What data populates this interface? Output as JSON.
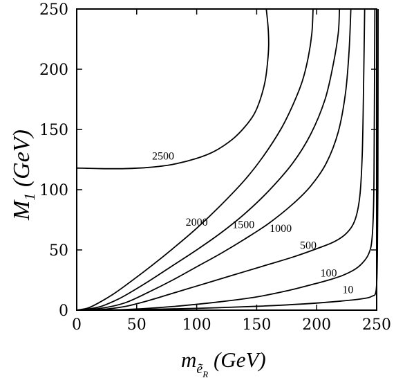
{
  "chart_data": {
    "type": "line",
    "title": "",
    "xlabel": {
      "main": "m",
      "sub": "ẽ",
      "subsub": "R",
      "units": " (GeV)"
    },
    "ylabel": {
      "main": "M",
      "sub": "1",
      "units": "  (GeV)"
    },
    "xlim": [
      0,
      250
    ],
    "ylim": [
      0,
      250
    ],
    "xticks": [
      0,
      50,
      100,
      150,
      200,
      250
    ],
    "yticks": [
      0,
      50,
      100,
      150,
      200,
      250
    ],
    "grid": false,
    "legend": "none",
    "series": [
      {
        "label": "2500",
        "label_at": [
          72,
          125
        ],
        "points": [
          [
            0,
            118
          ],
          [
            20,
            117.5
          ],
          [
            40,
            117.5
          ],
          [
            60,
            118.5
          ],
          [
            80,
            121
          ],
          [
            100,
            126
          ],
          [
            115,
            132
          ],
          [
            130,
            142
          ],
          [
            140,
            152
          ],
          [
            148,
            163
          ],
          [
            153,
            175
          ],
          [
            157,
            190
          ],
          [
            159,
            205
          ],
          [
            160,
            220
          ],
          [
            159.5,
            235
          ],
          [
            158,
            250
          ]
        ]
      },
      {
        "label": "2000",
        "label_at": [
          100,
          70
        ],
        "points": [
          [
            0,
            0
          ],
          [
            10,
            2
          ],
          [
            20,
            7
          ],
          [
            30,
            13
          ],
          [
            40,
            20
          ],
          [
            60,
            35
          ],
          [
            80,
            51
          ],
          [
            100,
            68
          ],
          [
            120,
            87
          ],
          [
            140,
            108
          ],
          [
            155,
            127
          ],
          [
            170,
            150
          ],
          [
            180,
            170
          ],
          [
            188,
            190
          ],
          [
            193,
            210
          ],
          [
            196,
            230
          ],
          [
            197,
            250
          ]
        ]
      },
      {
        "label": "1500",
        "label_at": [
          139,
          68
        ],
        "points": [
          [
            0,
            0
          ],
          [
            10,
            1
          ],
          [
            20,
            3
          ],
          [
            30,
            7
          ],
          [
            40,
            12
          ],
          [
            60,
            24
          ],
          [
            80,
            37
          ],
          [
            100,
            50
          ],
          [
            120,
            64
          ],
          [
            140,
            80
          ],
          [
            160,
            99
          ],
          [
            180,
            122
          ],
          [
            195,
            146
          ],
          [
            207,
            175
          ],
          [
            214,
            205
          ],
          [
            218,
            230
          ],
          [
            219,
            250
          ]
        ]
      },
      {
        "label": "1000",
        "label_at": [
          170,
          65
        ],
        "points": [
          [
            0,
            0
          ],
          [
            20,
            1.5
          ],
          [
            40,
            6
          ],
          [
            60,
            15
          ],
          [
            80,
            25
          ],
          [
            100,
            36
          ],
          [
            120,
            47
          ],
          [
            140,
            59
          ],
          [
            160,
            72
          ],
          [
            180,
            88
          ],
          [
            195,
            103
          ],
          [
            208,
            122
          ],
          [
            218,
            148
          ],
          [
            224,
            180
          ],
          [
            227,
            215
          ],
          [
            228.5,
            250
          ]
        ]
      },
      {
        "label": "500",
        "label_at": [
          193,
          51
        ],
        "points": [
          [
            0,
            0
          ],
          [
            20,
            0.5
          ],
          [
            40,
            3
          ],
          [
            60,
            8
          ],
          [
            80,
            14
          ],
          [
            100,
            20
          ],
          [
            120,
            26
          ],
          [
            140,
            32
          ],
          [
            160,
            38
          ],
          [
            180,
            44
          ],
          [
            200,
            51
          ],
          [
            215,
            57
          ],
          [
            225,
            64
          ],
          [
            232,
            75
          ],
          [
            236,
            95
          ],
          [
            238,
            130
          ],
          [
            239,
            180
          ],
          [
            240,
            250
          ]
        ]
      },
      {
        "label": "100",
        "label_at": [
          210,
          28
        ],
        "points": [
          [
            0,
            0
          ],
          [
            40,
            0.5
          ],
          [
            80,
            3
          ],
          [
            120,
            7
          ],
          [
            150,
            11
          ],
          [
            175,
            16
          ],
          [
            195,
            21
          ],
          [
            210,
            25
          ],
          [
            222,
            29
          ],
          [
            232,
            34
          ],
          [
            238,
            39
          ],
          [
            243,
            46
          ],
          [
            246,
            58
          ],
          [
            247.5,
            90
          ],
          [
            248,
            150
          ],
          [
            248.5,
            250
          ]
        ]
      },
      {
        "label": "10",
        "label_at": [
          226,
          14
        ],
        "points": [
          [
            0,
            0
          ],
          [
            50,
            0.5
          ],
          [
            100,
            1.5
          ],
          [
            150,
            3.2
          ],
          [
            190,
            5.2
          ],
          [
            220,
            7.5
          ],
          [
            238,
            9.5
          ],
          [
            246,
            11.5
          ],
          [
            249.5,
            16
          ],
          [
            250.5,
            40
          ],
          [
            251,
            100
          ],
          [
            251.2,
            250
          ]
        ]
      }
    ]
  }
}
